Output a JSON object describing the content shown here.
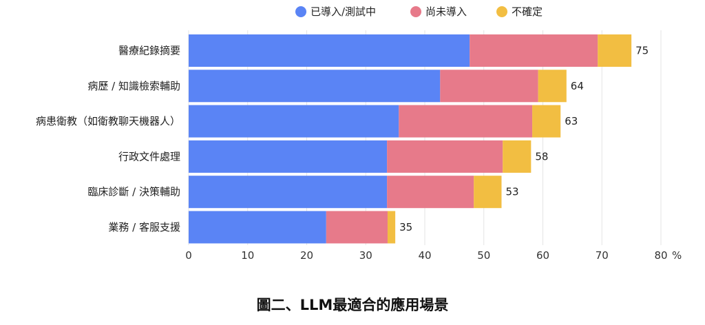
{
  "chart_data": {
    "type": "bar",
    "orientation": "horizontal",
    "stacked": true,
    "title": "圖二、LLM最適合的應用場景",
    "xlabel": "",
    "ylabel": "",
    "x_unit": "%",
    "xlim": [
      0,
      80
    ],
    "x_ticks": [
      "0",
      "10",
      "20",
      "30",
      "40",
      "50",
      "60",
      "70",
      "80"
    ],
    "grid": true,
    "legend_position": "top",
    "categories": [
      "醫療紀錄摘要",
      "病歷 / 知識檢索輔助",
      "病患衛教（如衛教聊天機器人）",
      "行政文件處理",
      "臨床診斷 / 決策輔助",
      "業務 / 客服支援"
    ],
    "series": [
      {
        "name": "已導入/測試中",
        "color": "#5A84F5",
        "values": [
          47.6,
          42.6,
          35.6,
          33.6,
          33.6,
          23.3
        ]
      },
      {
        "name": "尚未導入",
        "color": "#E77A8A",
        "values": [
          21.7,
          16.6,
          22.6,
          19.6,
          14.7,
          10.4
        ]
      },
      {
        "name": "不確定",
        "color": "#F2BE42",
        "values": [
          5.7,
          4.8,
          4.8,
          4.8,
          4.7,
          1.3
        ]
      }
    ],
    "totals": [
      "75",
      "64",
      "63",
      "58",
      "53",
      "35"
    ]
  }
}
